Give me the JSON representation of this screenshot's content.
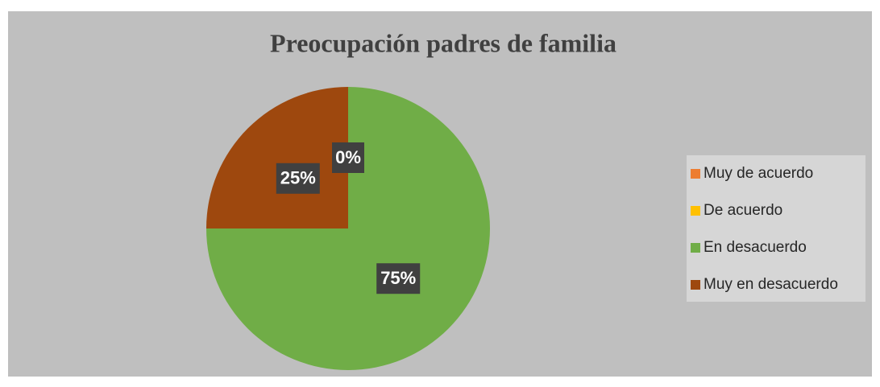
{
  "chart_data": {
    "type": "pie",
    "title": "Preocupación padres de familia",
    "categories": [
      "Muy de acuerdo",
      "De acuerdo",
      "En desacuerdo",
      "Muy en desacuerdo"
    ],
    "values": [
      0,
      0,
      75,
      25
    ],
    "value_labels": [
      "0%",
      "0%",
      "75%",
      "25%"
    ],
    "colors": [
      "#ed7d31",
      "#ffc000",
      "#70ad47",
      "#9e480e"
    ],
    "legend": "right"
  }
}
